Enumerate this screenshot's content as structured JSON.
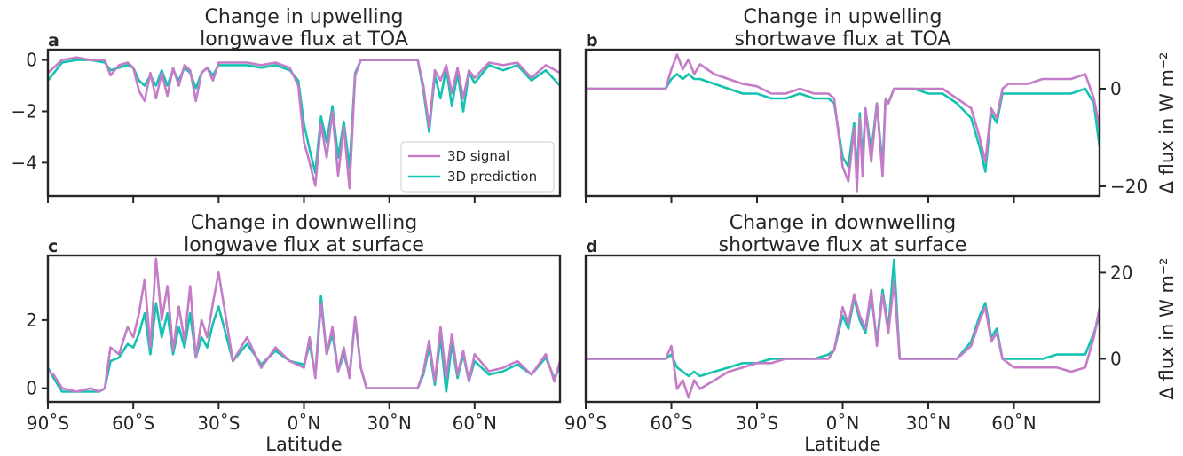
{
  "colors": {
    "signal": "#c47bc8",
    "prediction": "#14c2b0",
    "axis": "#262626"
  },
  "legend": {
    "signal_label": "3D signal",
    "prediction_label": "3D prediction",
    "placement": "lower-right"
  },
  "shared_ylabel": "Δ flux in W m⁻²",
  "shared_xlabel": "Latitude",
  "x_tick_labels": [
    "90˚S",
    "60˚S",
    "30˚S",
    "0˚N",
    "30˚N",
    "60˚N"
  ],
  "chart_data": [
    {
      "type": "line",
      "panel": "a",
      "title": [
        "Change in upwelling",
        "longwave flux at TOA"
      ],
      "xlim": [
        -90,
        90
      ],
      "ylim": [
        -5.3,
        0.4
      ],
      "yticks": [
        0,
        -2,
        -4
      ],
      "ytick_side": "left",
      "ylabel": "",
      "xlabel": "",
      "x": [
        -90,
        -85,
        -80,
        -75,
        -70,
        -68,
        -65,
        -62,
        -60,
        -58,
        -56,
        -54,
        -52,
        -50,
        -48,
        -46,
        -44,
        -42,
        -40,
        -38,
        -36,
        -34,
        -32,
        -30,
        -25,
        -20,
        -15,
        -10,
        -5,
        -2,
        0,
        2,
        4,
        6,
        8,
        10,
        12,
        14,
        16,
        18,
        20,
        22,
        25,
        30,
        35,
        40,
        42,
        44,
        46,
        48,
        50,
        52,
        54,
        56,
        58,
        60,
        65,
        70,
        75,
        80,
        85,
        90
      ],
      "series": [
        {
          "name": "3D signal",
          "values": [
            -0.5,
            0.0,
            0.1,
            0.0,
            0.0,
            -0.6,
            -0.2,
            -0.1,
            -0.3,
            -1.2,
            -1.6,
            -0.5,
            -1.5,
            -0.5,
            -1.4,
            -0.3,
            -1.0,
            -0.2,
            -0.4,
            -1.6,
            -0.5,
            -0.3,
            -0.8,
            -0.1,
            -0.1,
            -0.1,
            -0.2,
            -0.1,
            -0.3,
            -1.0,
            -3.2,
            -4.0,
            -4.9,
            -2.5,
            -3.8,
            -2.0,
            -4.5,
            -2.6,
            -5.0,
            -0.6,
            0.0,
            0.0,
            0.0,
            0.0,
            0.0,
            0.0,
            -1.0,
            -2.6,
            -0.4,
            -0.8,
            -0.2,
            -1.3,
            -0.3,
            -1.5,
            -0.4,
            -0.7,
            -0.1,
            -0.2,
            -0.1,
            -0.7,
            -0.2,
            -0.5
          ]
        },
        {
          "name": "3D prediction",
          "values": [
            -0.8,
            -0.1,
            0.0,
            0.0,
            -0.1,
            -0.4,
            -0.3,
            -0.2,
            -0.3,
            -0.8,
            -1.0,
            -0.6,
            -1.0,
            -0.4,
            -1.0,
            -0.4,
            -0.8,
            -0.3,
            -0.5,
            -1.1,
            -0.5,
            -0.3,
            -0.6,
            -0.2,
            -0.2,
            -0.2,
            -0.3,
            -0.2,
            -0.4,
            -0.8,
            -2.5,
            -3.5,
            -4.4,
            -2.2,
            -3.2,
            -1.8,
            -3.8,
            -2.4,
            -4.2,
            -0.5,
            0.0,
            0.0,
            0.0,
            0.0,
            0.0,
            0.0,
            -1.2,
            -2.8,
            -0.6,
            -1.5,
            -0.3,
            -1.8,
            -0.5,
            -2.0,
            -0.5,
            -0.9,
            -0.2,
            -0.4,
            -0.2,
            -0.8,
            -0.4,
            -1.0
          ]
        }
      ]
    },
    {
      "type": "line",
      "panel": "b",
      "title": [
        "Change in upwelling",
        "shortwave flux at TOA"
      ],
      "xlim": [
        -90,
        90
      ],
      "ylim": [
        -22,
        8
      ],
      "yticks": [
        0,
        -20
      ],
      "ytick_side": "right",
      "ylabel": "Δ flux in W m⁻²",
      "xlabel": "",
      "x": [
        -90,
        -80,
        -70,
        -65,
        -62,
        -60,
        -58,
        -56,
        -54,
        -52,
        -50,
        -45,
        -40,
        -35,
        -30,
        -25,
        -20,
        -15,
        -10,
        -5,
        -3,
        0,
        2,
        4,
        5,
        6,
        7,
        8,
        10,
        12,
        14,
        15,
        16,
        18,
        20,
        25,
        30,
        35,
        40,
        45,
        48,
        50,
        52,
        54,
        56,
        58,
        60,
        65,
        70,
        75,
        80,
        85,
        88,
        90
      ],
      "series": [
        {
          "name": "3D signal",
          "values": [
            0,
            0,
            0,
            0,
            0,
            4,
            7,
            4,
            6,
            3,
            5,
            3,
            2,
            1,
            0.5,
            -1,
            -1,
            0,
            -1,
            -1,
            -2,
            -16,
            -19,
            -8,
            -21,
            -6,
            -18,
            -4,
            -15,
            -3,
            -18,
            -2,
            -3,
            0,
            0,
            0,
            0,
            0,
            -2,
            -4,
            -10,
            -15,
            -4,
            -6,
            0,
            1,
            1,
            1,
            2,
            2,
            2,
            3,
            -2,
            -8
          ]
        },
        {
          "name": "3D prediction",
          "values": [
            0,
            0,
            0,
            0,
            0,
            2,
            3,
            2,
            3,
            2,
            2,
            1,
            0,
            -1,
            -1,
            -2,
            -2,
            -1,
            -2,
            -2,
            -3,
            -14,
            -16,
            -7,
            -18,
            -5,
            -15,
            -4,
            -13,
            -3,
            -16,
            -2,
            -3,
            0,
            0,
            0,
            -1,
            -1,
            -3,
            -6,
            -12,
            -17,
            -5,
            -7,
            -1,
            -1,
            -1,
            -1,
            -1,
            -1,
            -1,
            0,
            -3,
            -12
          ]
        }
      ]
    },
    {
      "type": "line",
      "panel": "c",
      "title": [
        "Change in downwelling",
        "longwave flux at surface"
      ],
      "xlim": [
        -90,
        90
      ],
      "ylim": [
        -0.4,
        3.9
      ],
      "yticks": [
        0,
        2
      ],
      "ytick_side": "left",
      "ylabel": "",
      "xlabel": "Latitude",
      "x": [
        -90,
        -88,
        -85,
        -80,
        -75,
        -72,
        -70,
        -68,
        -65,
        -62,
        -60,
        -58,
        -56,
        -54,
        -52,
        -50,
        -48,
        -46,
        -44,
        -42,
        -40,
        -38,
        -36,
        -34,
        -32,
        -30,
        -25,
        -20,
        -15,
        -10,
        -5,
        0,
        2,
        4,
        6,
        8,
        10,
        12,
        14,
        16,
        18,
        20,
        22,
        25,
        30,
        35,
        40,
        42,
        44,
        46,
        48,
        50,
        52,
        54,
        56,
        58,
        60,
        65,
        70,
        75,
        80,
        85,
        88,
        90
      ],
      "series": [
        {
          "name": "3D signal",
          "values": [
            0.5,
            0.4,
            0.0,
            -0.1,
            0.0,
            -0.1,
            0.0,
            1.2,
            1.0,
            1.8,
            1.5,
            2.2,
            3.2,
            1.2,
            3.8,
            2.0,
            3.0,
            1.1,
            2.4,
            1.4,
            3.0,
            0.9,
            2.0,
            1.5,
            2.5,
            3.4,
            0.8,
            1.5,
            0.6,
            1.2,
            0.8,
            0.6,
            1.5,
            0.3,
            2.5,
            1.0,
            1.8,
            0.5,
            1.2,
            0.3,
            2.1,
            0.6,
            0.0,
            0.0,
            0.0,
            0.0,
            0.0,
            0.5,
            1.4,
            0.2,
            1.8,
            0.3,
            1.6,
            0.4,
            1.1,
            0.2,
            1.0,
            0.5,
            0.6,
            0.8,
            0.4,
            1.0,
            0.2,
            0.8
          ]
        },
        {
          "name": "3D prediction",
          "values": [
            0.6,
            0.3,
            -0.1,
            -0.1,
            -0.1,
            -0.1,
            0.0,
            0.8,
            0.9,
            1.3,
            1.2,
            1.6,
            2.2,
            1.0,
            2.5,
            1.5,
            2.2,
            1.0,
            1.8,
            1.2,
            2.2,
            0.9,
            1.5,
            1.2,
            1.9,
            2.4,
            0.8,
            1.3,
            0.7,
            1.1,
            0.8,
            0.7,
            1.3,
            0.4,
            2.7,
            1.0,
            1.6,
            0.5,
            1.0,
            0.4,
            2.0,
            0.6,
            0.0,
            0.0,
            0.0,
            0.0,
            0.0,
            0.4,
            1.2,
            0.1,
            1.5,
            -0.1,
            1.3,
            0.3,
            1.0,
            0.2,
            0.8,
            0.4,
            0.5,
            0.7,
            0.4,
            0.9,
            0.3,
            0.6
          ]
        }
      ]
    },
    {
      "type": "line",
      "panel": "d",
      "title": [
        "Change in downwelling",
        "shortwave flux at surface"
      ],
      "xlim": [
        -90,
        90
      ],
      "ylim": [
        -10,
        24
      ],
      "yticks": [
        20,
        0
      ],
      "ytick_side": "right",
      "ylabel": "Δ flux in W m⁻²",
      "xlabel": "Latitude",
      "x": [
        -90,
        -80,
        -70,
        -65,
        -62,
        -60,
        -58,
        -56,
        -54,
        -52,
        -50,
        -45,
        -40,
        -35,
        -30,
        -25,
        -20,
        -15,
        -10,
        -5,
        -3,
        0,
        2,
        4,
        6,
        8,
        10,
        12,
        14,
        16,
        18,
        20,
        22,
        25,
        30,
        35,
        40,
        45,
        48,
        50,
        52,
        54,
        56,
        58,
        60,
        65,
        70,
        75,
        80,
        85,
        88,
        90
      ],
      "series": [
        {
          "name": "3D signal",
          "values": [
            0,
            0,
            0,
            0,
            0,
            3,
            -7,
            -5,
            -9,
            -5,
            -7,
            -5,
            -3,
            -2,
            -1,
            -1,
            0,
            0,
            0,
            0,
            2,
            12,
            8,
            15,
            10,
            7,
            16,
            3,
            15,
            6,
            18,
            0,
            0,
            0,
            0,
            0,
            0,
            3,
            9,
            12,
            4,
            6,
            0,
            -1,
            -2,
            -2,
            -2,
            -2,
            -3,
            -2,
            5,
            12
          ]
        },
        {
          "name": "3D prediction",
          "values": [
            0,
            0,
            0,
            0,
            0,
            1,
            -2,
            -3,
            -4,
            -3,
            -4,
            -3,
            -2,
            -1,
            -1,
            0,
            0,
            0,
            0,
            1,
            2,
            10,
            7,
            14,
            9,
            6,
            15,
            4,
            16,
            7,
            23,
            0,
            0,
            0,
            0,
            0,
            0,
            4,
            10,
            13,
            5,
            7,
            0,
            0,
            0,
            0,
            0,
            1,
            1,
            1,
            6,
            10
          ]
        }
      ]
    }
  ]
}
